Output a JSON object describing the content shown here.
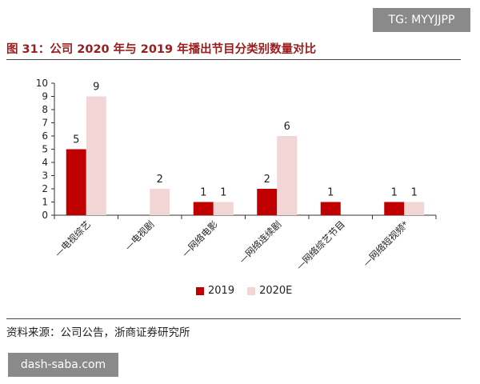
{
  "watermark_top": "TG: MYYJJPP",
  "watermark_bottom": "dash-saba.com",
  "title": "图 31：公司 2020 年与 2019 年播出节目分类别数量对比",
  "source": "资料来源：公司公告，浙商证券研究所",
  "colors": {
    "series_2019": "#c00000",
    "series_2020E": "#f2d6d6"
  },
  "chart_data": {
    "type": "bar",
    "categories": [
      "—电视综艺",
      "—电视剧",
      "—网络电影",
      "—网络连续剧",
      "—网络综艺节目",
      "—网络短视频*"
    ],
    "series": [
      {
        "name": "2019",
        "values": [
          5,
          null,
          1,
          2,
          1,
          1
        ]
      },
      {
        "name": "2020E",
        "values": [
          9,
          2,
          1,
          6,
          null,
          1
        ]
      }
    ],
    "ylim": [
      0,
      10
    ],
    "yticks": [
      0,
      1,
      2,
      3,
      4,
      5,
      6,
      7,
      8,
      9,
      10
    ],
    "legend_position": "bottom",
    "grid": false
  }
}
